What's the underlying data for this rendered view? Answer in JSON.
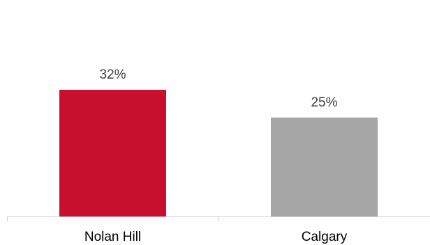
{
  "chart_data": {
    "type": "bar",
    "title": "",
    "xlabel": "",
    "ylabel": "",
    "categories": [
      "Nolan Hill",
      "Calgary"
    ],
    "values": [
      32,
      25
    ],
    "value_labels": [
      "32%",
      "25%"
    ],
    "ylim": [
      0,
      40
    ],
    "grid": false,
    "legend": "none",
    "colors": [
      "#c8102e",
      "#a6a6a6"
    ]
  }
}
